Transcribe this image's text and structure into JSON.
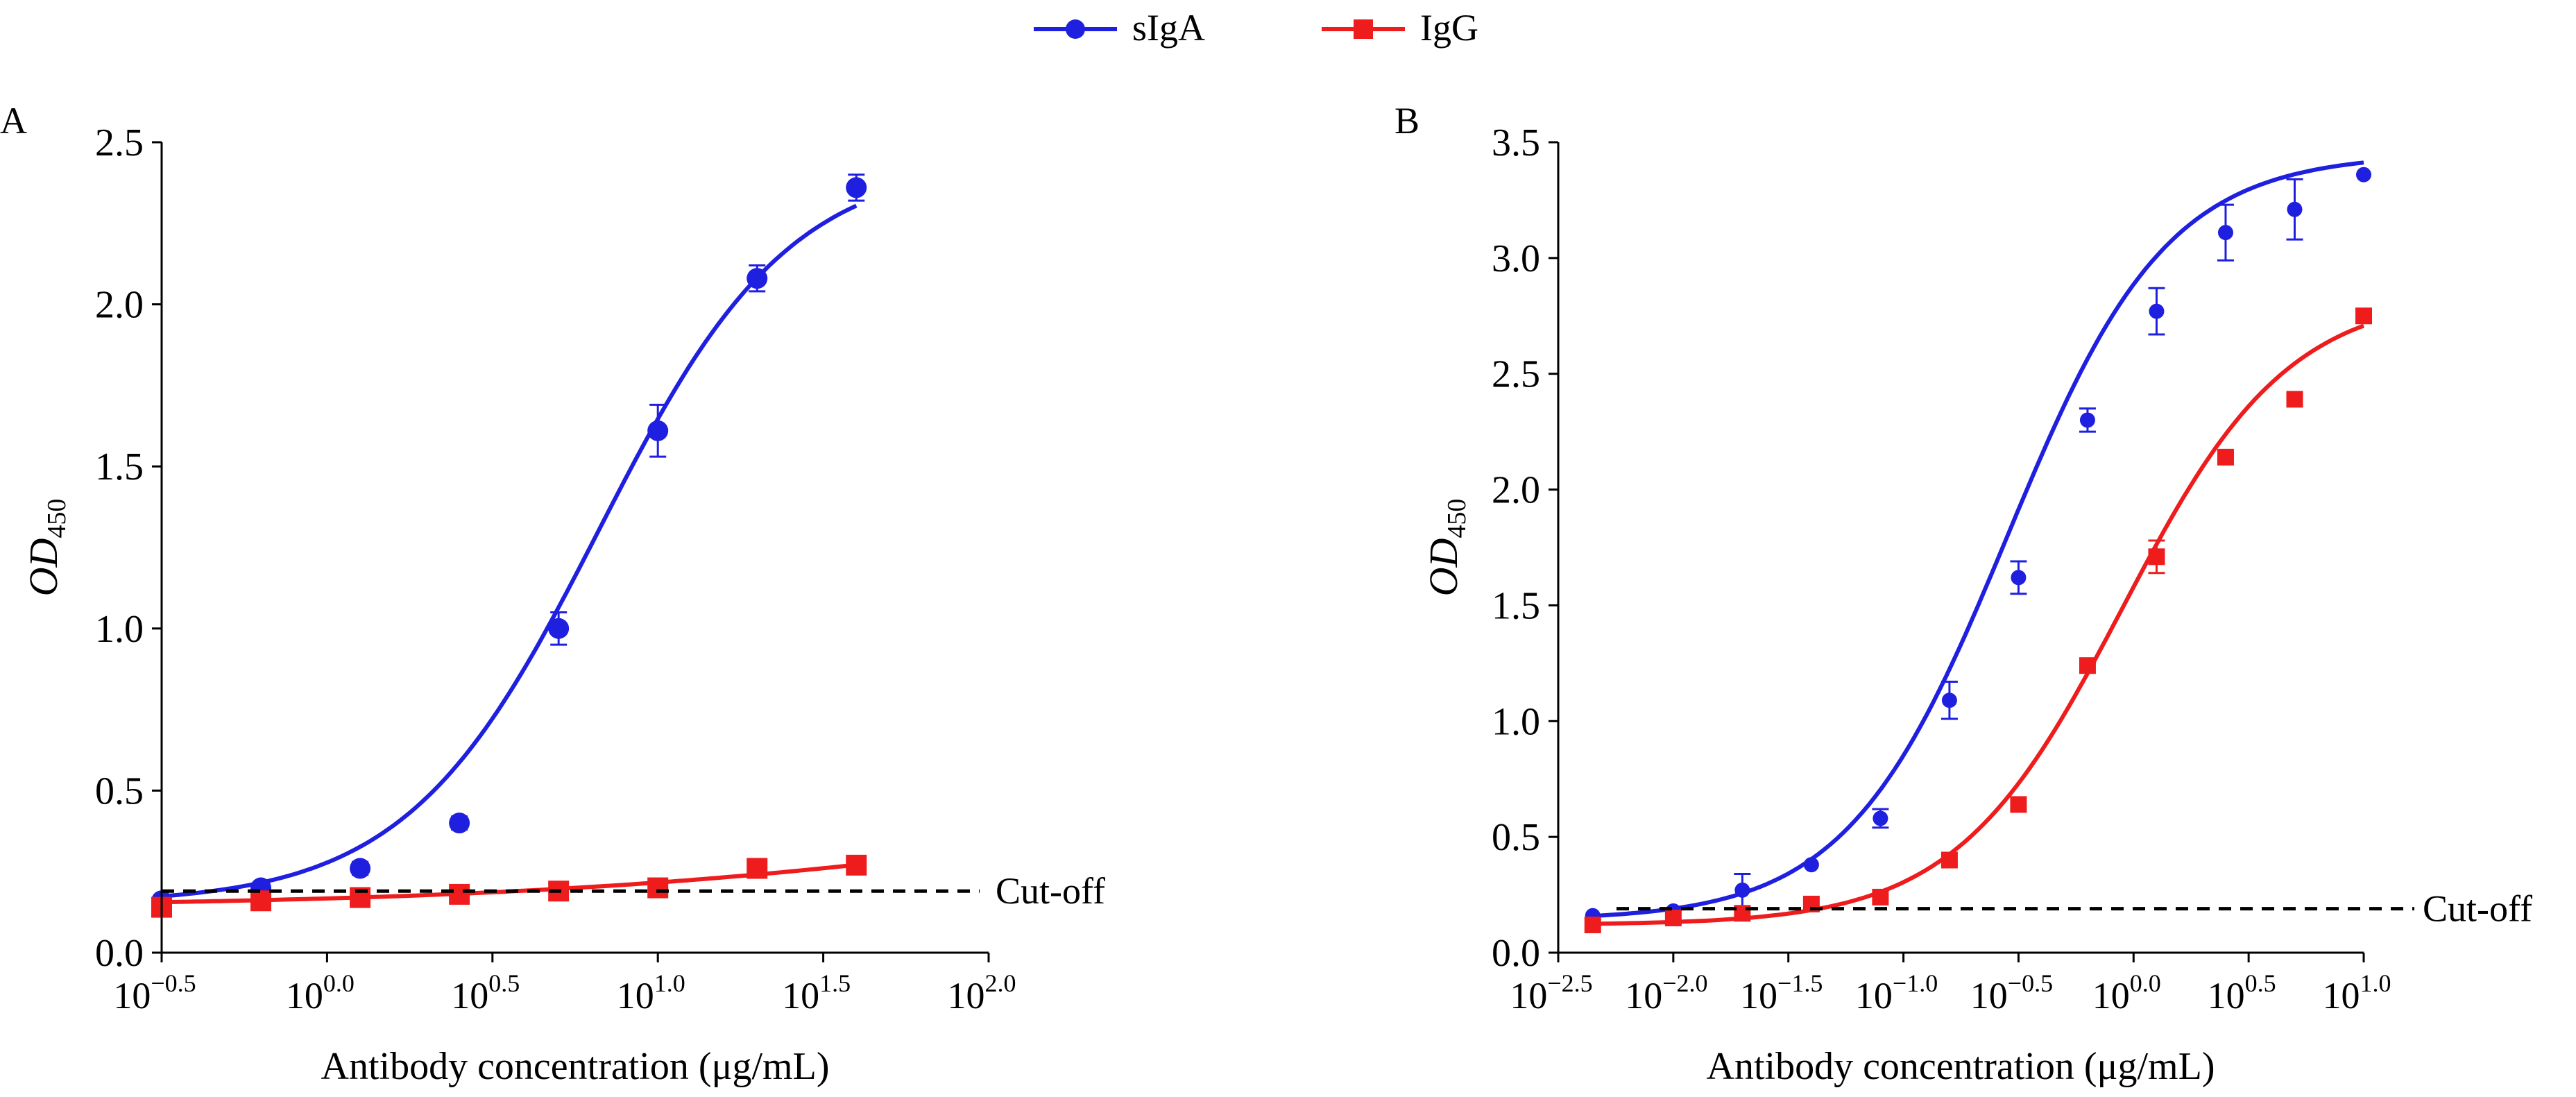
{
  "legend": {
    "position": "top-center",
    "items": [
      {
        "label": "sIgA",
        "color": "#1f1fe0",
        "marker": "circle"
      },
      {
        "label": "IgG",
        "color": "#ee1c1c",
        "marker": "square"
      }
    ]
  },
  "chart_data": [
    {
      "panel_label": "A",
      "type": "scatter",
      "xscale": "log",
      "xlim_exp": [
        -0.5,
        2.0
      ],
      "xticks": [
        "10^-0.5",
        "10^0.0",
        "10^0.5",
        "10^1.0",
        "10^1.5",
        "10^2.0"
      ],
      "xlabel": "Antibody concentration (μg/mL)",
      "ylabel": "OD",
      "ylabel_sub": "450",
      "ylim": [
        0,
        2.5
      ],
      "yticks": [
        "0.0",
        "0.5",
        "1.0",
        "1.5",
        "2.0",
        "2.5"
      ],
      "cutoff": {
        "label": "Cut-off",
        "value": 0.19
      },
      "series": [
        {
          "name": "sIgA",
          "color": "#1f1fe0",
          "marker": "circle",
          "x_exp": [
            -0.5,
            -0.2,
            0.1,
            0.4,
            0.7,
            1.0,
            1.3,
            1.6
          ],
          "y": [
            0.16,
            0.2,
            0.26,
            0.4,
            1.0,
            1.61,
            2.08,
            2.36
          ],
          "err": [
            0.01,
            0.01,
            0.02,
            0.02,
            0.05,
            0.08,
            0.04,
            0.04
          ],
          "fit": {
            "bottom": 0.15,
            "top": 2.45,
            "logEC50": 0.82,
            "hill": 1.5
          }
        },
        {
          "name": "IgG",
          "color": "#ee1c1c",
          "marker": "square",
          "x_exp": [
            -0.5,
            -0.2,
            0.1,
            0.4,
            0.7,
            1.0,
            1.3,
            1.6
          ],
          "y": [
            0.14,
            0.16,
            0.17,
            0.18,
            0.19,
            0.2,
            0.26,
            0.27
          ],
          "err": [
            0.01,
            0.01,
            0.01,
            0.01,
            0.01,
            0.01,
            0.01,
            0.01
          ],
          "fit": {
            "bottom": 0.14,
            "top": 0.6,
            "logEC50": 2.4,
            "hill": 0.5
          }
        }
      ]
    },
    {
      "panel_label": "B",
      "type": "scatter",
      "xscale": "log",
      "xlim_exp": [
        -2.5,
        1.0
      ],
      "xticks": [
        "10^-2.5",
        "10^-2.0",
        "10^-1.5",
        "10^-1.0",
        "10^-0.5",
        "10^0.0",
        "10^0.5",
        "10^1.0"
      ],
      "xlabel": "Antibody concentration (μg/mL)",
      "ylabel": "OD",
      "ylabel_sub": "450",
      "ylim": [
        0,
        3.5
      ],
      "yticks": [
        "0.0",
        "0.5",
        "1.0",
        "1.5",
        "2.0",
        "2.5",
        "3.0",
        "3.5"
      ],
      "cutoff": {
        "label": "Cut-off",
        "value": 0.19
      },
      "series": [
        {
          "name": "sIgA",
          "color": "#1f1fe0",
          "marker": "circle",
          "x_exp": [
            -2.35,
            -2.0,
            -1.7,
            -1.4,
            -1.1,
            -0.8,
            -0.5,
            -0.2,
            0.1,
            0.4,
            0.7,
            1.0
          ],
          "y": [
            0.16,
            0.18,
            0.27,
            0.38,
            0.58,
            1.09,
            1.62,
            2.3,
            2.77,
            3.11,
            3.21,
            3.36
          ],
          "err": [
            0.01,
            0.01,
            0.07,
            0.01,
            0.04,
            0.08,
            0.07,
            0.05,
            0.1,
            0.12,
            0.13,
            0.01
          ],
          "fit": {
            "bottom": 0.14,
            "top": 3.45,
            "logEC50": -0.55,
            "hill": 1.25
          }
        },
        {
          "name": "IgG",
          "color": "#ee1c1c",
          "marker": "square",
          "x_exp": [
            -2.35,
            -2.0,
            -1.7,
            -1.4,
            -1.1,
            -0.8,
            -0.5,
            -0.2,
            0.1,
            0.4,
            0.7,
            1.0
          ],
          "y": [
            0.12,
            0.15,
            0.17,
            0.21,
            0.24,
            0.4,
            0.64,
            1.24,
            1.71,
            2.14,
            2.39,
            2.75
          ],
          "err": [
            0.01,
            0.01,
            0.01,
            0.01,
            0.01,
            0.01,
            0.01,
            0.01,
            0.07,
            0.01,
            0.01,
            0.01
          ],
          "fit": {
            "bottom": 0.12,
            "top": 2.85,
            "logEC50": -0.05,
            "hill": 1.2
          }
        }
      ]
    }
  ]
}
